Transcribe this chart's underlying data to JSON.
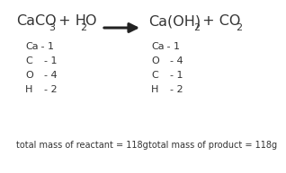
{
  "background_color": "#ffffff",
  "text_color": "#333333",
  "arrow_color": "#222222",
  "reactant_elements": [
    [
      "Ca",
      " - 1"
    ],
    [
      "C",
      "  - 1"
    ],
    [
      "O",
      "  - 4"
    ],
    [
      "H",
      "  - 2"
    ]
  ],
  "product_elements": [
    [
      "Ca",
      " - 1"
    ],
    [
      "O",
      "  - 4"
    ],
    [
      "C",
      "  - 1"
    ],
    [
      "H",
      "  - 2"
    ]
  ],
  "reactant_total": "total mass of reactant = 118g",
  "product_total": "total mass of product = 118g",
  "fs_eq": 11.5,
  "fs_sub": 8,
  "fs_elem": 8,
  "fs_total": 7
}
